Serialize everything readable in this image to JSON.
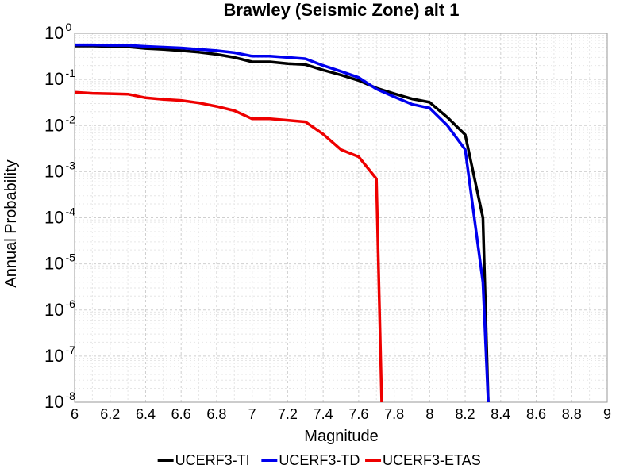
{
  "chart_data": {
    "type": "line",
    "title": "Brawley (Seismic Zone) alt 1",
    "xlabel": "Magnitude",
    "ylabel": "Annual Probability",
    "xlim": [
      6,
      9
    ],
    "ylim": [
      1e-08,
      1
    ],
    "yscale": "log",
    "grid": true,
    "legend": "bottom",
    "x_ticks": [
      "6",
      "6.2",
      "6.4",
      "6.6",
      "6.8",
      "7",
      "7.2",
      "7.4",
      "7.6",
      "7.8",
      "8",
      "8.2",
      "8.4",
      "8.6",
      "8.8",
      "9"
    ],
    "y_ticks": [
      {
        "base": "10",
        "exp": "0"
      },
      {
        "base": "10",
        "exp": "-1"
      },
      {
        "base": "10",
        "exp": "-2"
      },
      {
        "base": "10",
        "exp": "-3"
      },
      {
        "base": "10",
        "exp": "-4"
      },
      {
        "base": "10",
        "exp": "-5"
      },
      {
        "base": "10",
        "exp": "-6"
      },
      {
        "base": "10",
        "exp": "-7"
      },
      {
        "base": "10",
        "exp": "-8"
      }
    ],
    "series": [
      {
        "name": "UCERF3-TI",
        "color": "#000000",
        "x": [
          6.0,
          6.1,
          6.2,
          6.3,
          6.4,
          6.5,
          6.6,
          6.7,
          6.8,
          6.9,
          7.0,
          7.1,
          7.2,
          7.3,
          7.4,
          7.5,
          7.6,
          7.7,
          7.8,
          7.9,
          8.0,
          8.1,
          8.2,
          8.3,
          8.33
        ],
        "y": [
          0.53,
          0.53,
          0.52,
          0.51,
          0.47,
          0.45,
          0.42,
          0.39,
          0.35,
          0.3,
          0.24,
          0.24,
          0.22,
          0.21,
          0.16,
          0.125,
          0.095,
          0.065,
          0.049,
          0.038,
          0.032,
          0.015,
          0.0063,
          0.0001,
          1e-08
        ]
      },
      {
        "name": "UCERF3-TD",
        "color": "#0000ee",
        "x": [
          6.0,
          6.1,
          6.2,
          6.3,
          6.4,
          6.5,
          6.6,
          6.7,
          6.8,
          6.9,
          7.0,
          7.1,
          7.2,
          7.3,
          7.4,
          7.5,
          7.6,
          7.7,
          7.8,
          7.9,
          8.0,
          8.1,
          8.2,
          8.3,
          8.33
        ],
        "y": [
          0.56,
          0.56,
          0.55,
          0.55,
          0.52,
          0.5,
          0.48,
          0.45,
          0.42,
          0.38,
          0.32,
          0.32,
          0.3,
          0.28,
          0.2,
          0.15,
          0.11,
          0.062,
          0.042,
          0.029,
          0.024,
          0.01,
          0.003,
          4e-06,
          1e-08
        ]
      },
      {
        "name": "UCERF3-ETAS",
        "color": "#ee0000",
        "x": [
          6.0,
          6.1,
          6.2,
          6.3,
          6.4,
          6.5,
          6.6,
          6.7,
          6.8,
          6.9,
          7.0,
          7.1,
          7.2,
          7.3,
          7.4,
          7.5,
          7.6,
          7.7,
          7.73
        ],
        "y": [
          0.053,
          0.05,
          0.049,
          0.048,
          0.04,
          0.037,
          0.035,
          0.031,
          0.026,
          0.021,
          0.014,
          0.014,
          0.013,
          0.012,
          0.0065,
          0.003,
          0.0021,
          0.0007,
          1e-08
        ]
      }
    ]
  }
}
